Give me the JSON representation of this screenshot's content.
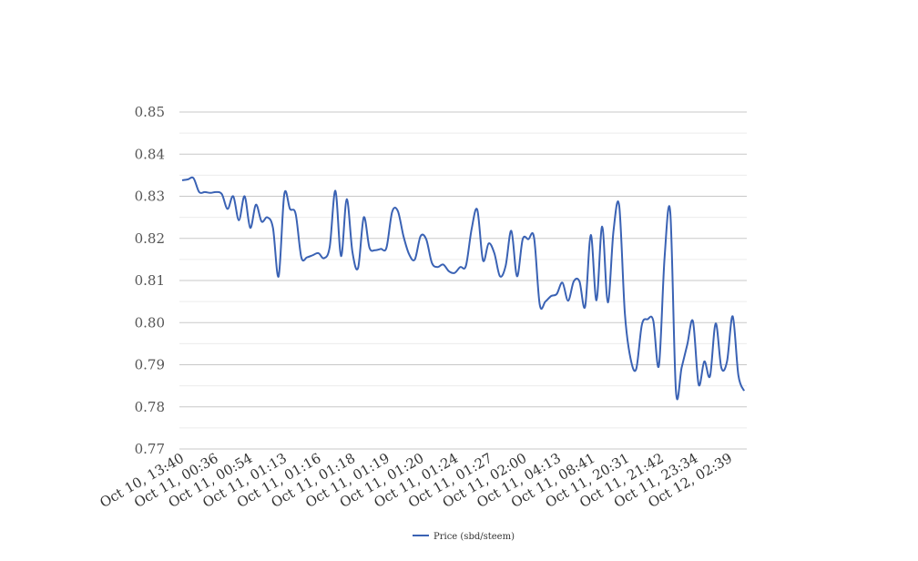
{
  "chart_data": {
    "type": "line",
    "title": "",
    "xlabel": "",
    "ylabel": "",
    "ylim": [
      0.77,
      0.85
    ],
    "yticks": [
      "0.77",
      "0.78",
      "0.79",
      "0.80",
      "0.81",
      "0.82",
      "0.83",
      "0.84",
      "0.85"
    ],
    "grid": true,
    "legend_position": "bottom-center",
    "x_tick_labels": [
      "Oct 10, 13:40",
      "Oct 11, 00:36",
      "Oct 11, 00:54",
      "Oct 11, 01:13",
      "Oct 11, 01:16",
      "Oct 11, 01:18",
      "Oct 11, 01:19",
      "Oct 11, 01:20",
      "Oct 11, 01:24",
      "Oct 11, 01:27",
      "Oct 11, 02:00",
      "Oct 11, 04:13",
      "Oct 11, 08:41",
      "Oct 11, 20:31",
      "Oct 11, 21:42",
      "Oct 11, 23:34",
      "Oct 12, 02:39"
    ],
    "series": [
      {
        "name": "Price (sbd/steem)",
        "color": "#3a62b4",
        "values": [
          0.8338,
          0.834,
          0.8343,
          0.831,
          0.831,
          0.8308,
          0.831,
          0.8305,
          0.827,
          0.83,
          0.8243,
          0.83,
          0.8225,
          0.828,
          0.824,
          0.825,
          0.8225,
          0.811,
          0.8305,
          0.827,
          0.8258,
          0.8155,
          0.8155,
          0.816,
          0.8165,
          0.8153,
          0.818,
          0.8313,
          0.8158,
          0.8293,
          0.8168,
          0.813,
          0.825,
          0.8178,
          0.8172,
          0.8175,
          0.8178,
          0.8263,
          0.8265,
          0.8205,
          0.8162,
          0.815,
          0.8205,
          0.8198,
          0.8142,
          0.8132,
          0.8138,
          0.8122,
          0.8118,
          0.8132,
          0.8135,
          0.8222,
          0.8268,
          0.8148,
          0.8188,
          0.8165,
          0.811,
          0.8135,
          0.8218,
          0.811,
          0.8198,
          0.8198,
          0.8202,
          0.8043,
          0.805,
          0.8063,
          0.8068,
          0.8095,
          0.8052,
          0.8098,
          0.8098,
          0.8038,
          0.8208,
          0.8053,
          0.8228,
          0.8048,
          0.8218,
          0.8278,
          0.8022,
          0.7915,
          0.789,
          0.7995,
          0.8008,
          0.8005,
          0.7898,
          0.8155,
          0.8262,
          0.7838,
          0.7893,
          0.7948,
          0.8003,
          0.7853,
          0.7908,
          0.7873,
          0.7998,
          0.7893,
          0.7908,
          0.8015,
          0.7875,
          0.7838
        ]
      }
    ]
  }
}
